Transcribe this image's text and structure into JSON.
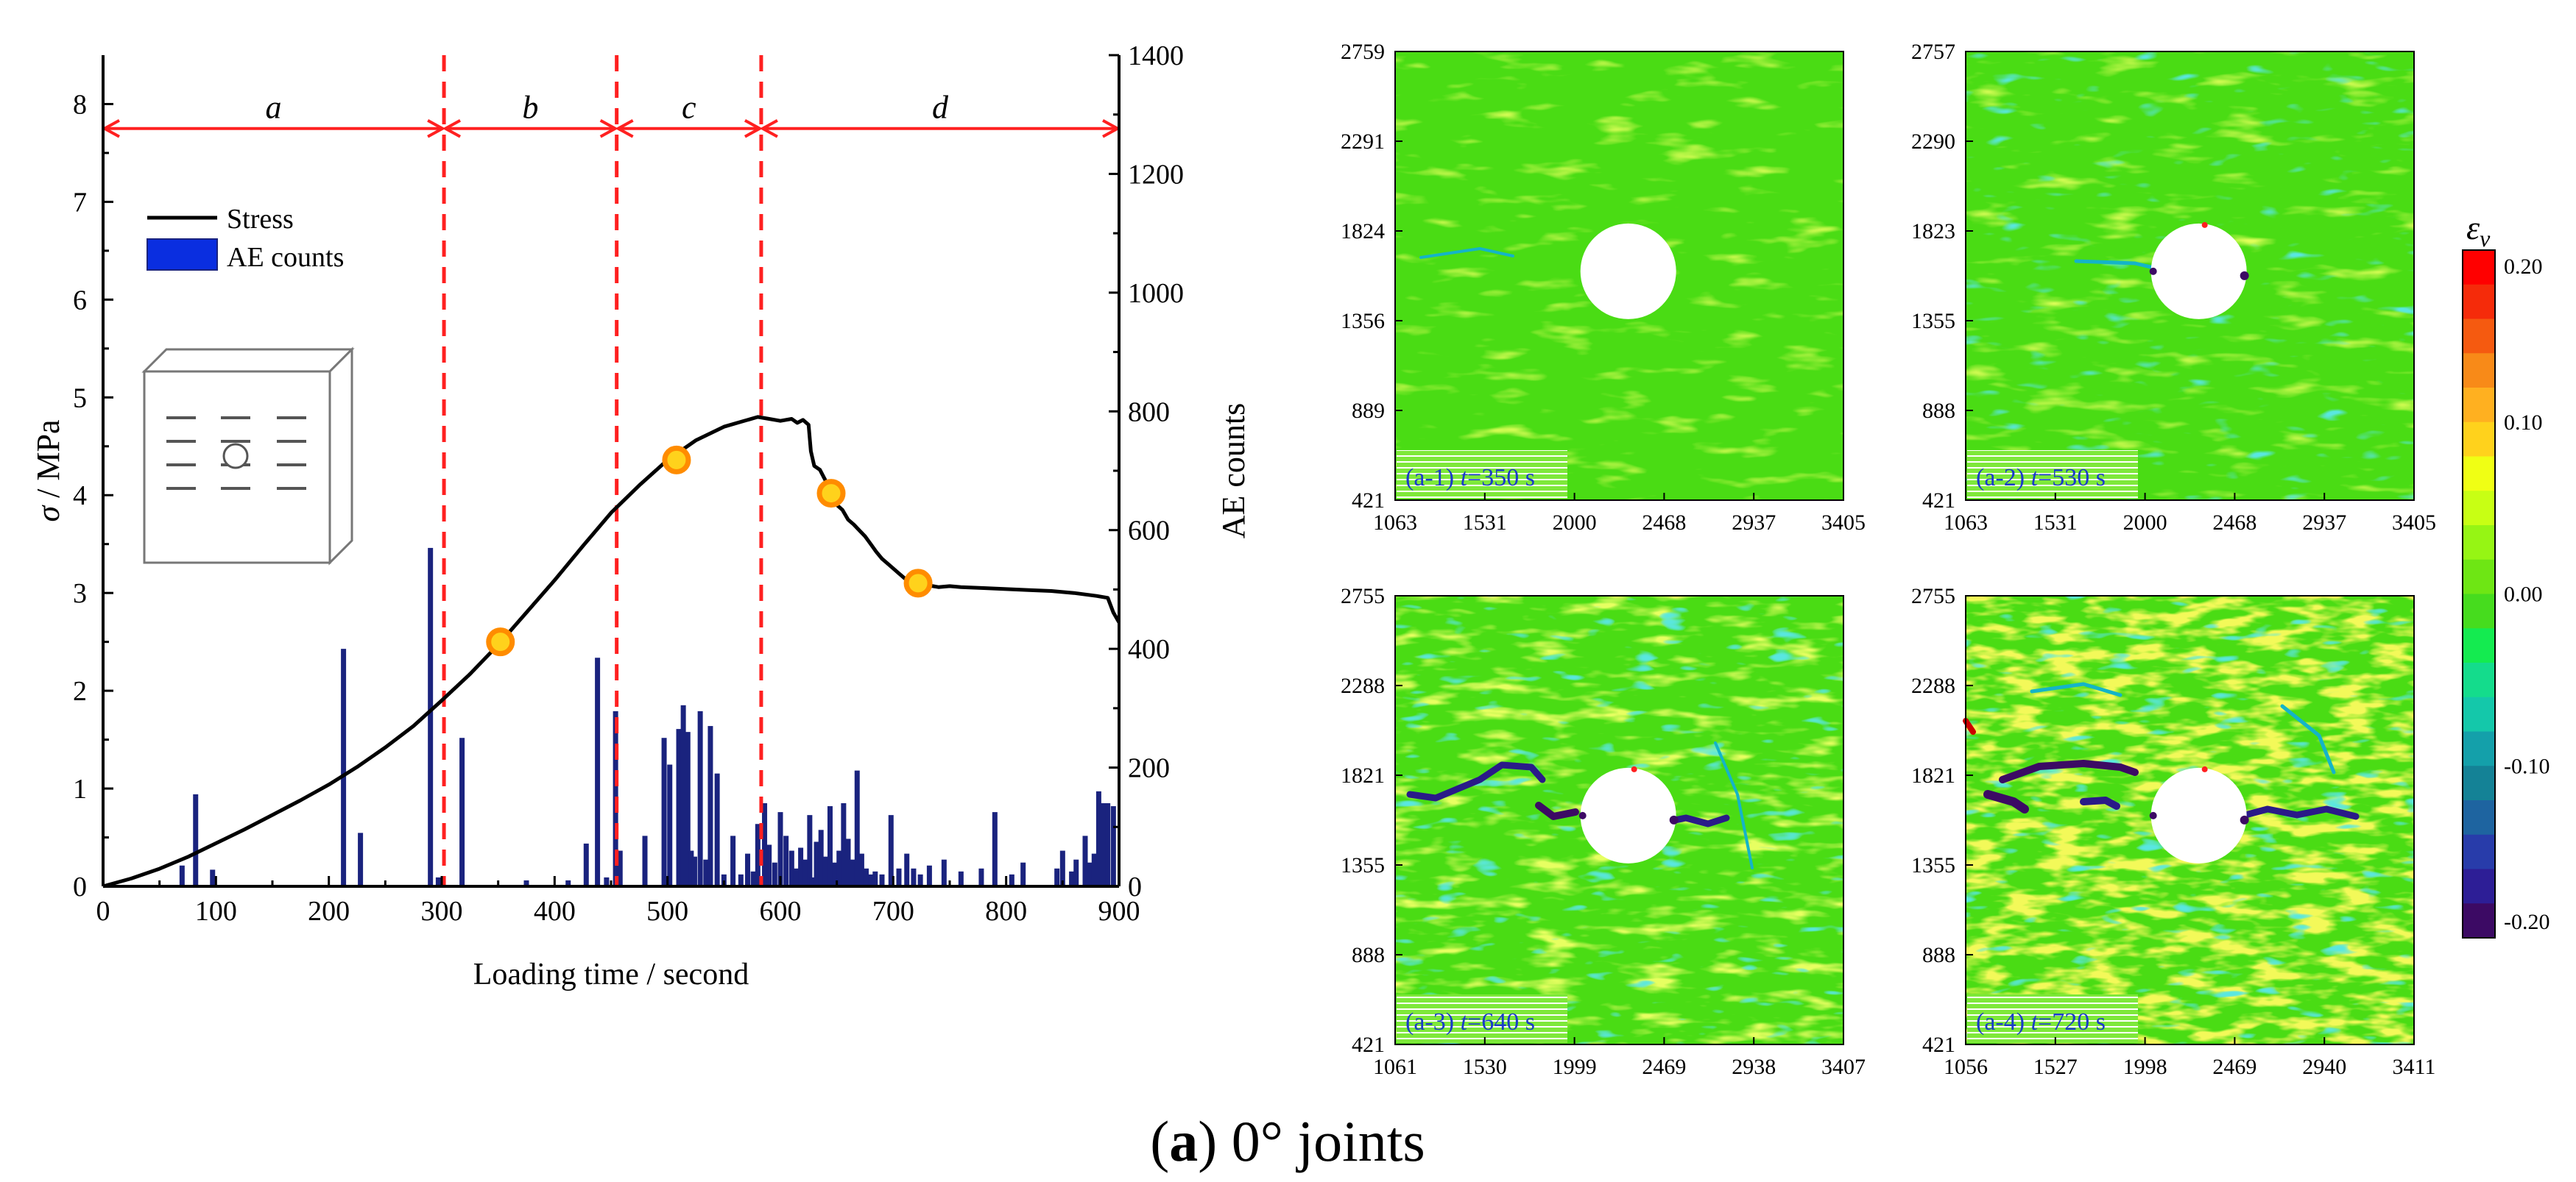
{
  "caption": {
    "label": "a",
    "text": " 0° joints"
  },
  "chart_data": [
    {
      "type": "line+bar",
      "xlabel": "Loading time / second",
      "ylabel_symbol": "σ",
      "ylabel_rest": " / MPa",
      "y2label": "AE counts",
      "xlim": [
        0,
        900
      ],
      "ylim": [
        0,
        8.5
      ],
      "y2lim": [
        0,
        1400
      ],
      "x_ticks": [
        0,
        100,
        200,
        300,
        400,
        500,
        600,
        700,
        800,
        900
      ],
      "y_ticks": [
        0,
        1,
        2,
        3,
        4,
        5,
        6,
        7,
        8
      ],
      "y2_ticks": [
        0,
        200,
        400,
        600,
        800,
        1000,
        1200,
        1400
      ],
      "legend": [
        {
          "label": "Stress",
          "kind": "line",
          "color": "#000000"
        },
        {
          "label": "AE counts",
          "kind": "bar",
          "color": "#1a237e"
        }
      ],
      "stages": [
        {
          "label": "a",
          "from": 0,
          "to": 302
        },
        {
          "label": "b",
          "from": 302,
          "to": 455
        },
        {
          "label": "c",
          "from": 455,
          "to": 583
        },
        {
          "label": "d",
          "from": 583,
          "to": 900
        }
      ],
      "stage_arrow_level": 7.75,
      "boundaries": [
        302,
        455,
        583
      ],
      "stress": {
        "name": "Stress",
        "x": [
          0,
          25,
          50,
          75,
          100,
          125,
          150,
          175,
          200,
          225,
          250,
          275,
          300,
          325,
          350,
          375,
          400,
          425,
          450,
          475,
          500,
          525,
          550,
          565,
          580,
          590,
          600,
          610,
          615,
          620,
          625,
          627,
          630,
          635,
          640,
          645,
          650,
          655,
          660,
          665,
          670,
          675,
          680,
          685,
          690,
          695,
          700,
          705,
          710,
          715,
          720,
          730,
          740,
          750,
          760,
          780,
          800,
          820,
          840,
          860,
          880,
          890,
          895,
          900
        ],
        "y": [
          0,
          0.08,
          0.18,
          0.3,
          0.44,
          0.58,
          0.73,
          0.88,
          1.04,
          1.22,
          1.42,
          1.64,
          1.9,
          2.17,
          2.47,
          2.8,
          3.13,
          3.48,
          3.82,
          4.1,
          4.36,
          4.56,
          4.7,
          4.75,
          4.8,
          4.78,
          4.76,
          4.78,
          4.74,
          4.77,
          4.72,
          4.45,
          4.3,
          4.26,
          4.15,
          4.02,
          3.9,
          3.85,
          3.75,
          3.7,
          3.64,
          3.58,
          3.5,
          3.42,
          3.35,
          3.3,
          3.25,
          3.2,
          3.15,
          3.12,
          3.1,
          3.08,
          3.06,
          3.07,
          3.06,
          3.05,
          3.04,
          3.03,
          3.02,
          3.0,
          2.97,
          2.95,
          2.8,
          2.7
        ]
      },
      "markers": [
        {
          "x": 352,
          "y": 2.5
        },
        {
          "x": 508,
          "y": 4.36
        },
        {
          "x": 645,
          "y": 4.02
        },
        {
          "x": 722,
          "y": 3.1
        }
      ],
      "ae_counts": {
        "name": "AE counts",
        "x": [
          70,
          82,
          97,
          213,
          228,
          290,
          297,
          318,
          375,
          412,
          428,
          438,
          446,
          454,
          458,
          480,
          497,
          502,
          510,
          514,
          518,
          521,
          524,
          529,
          534,
          538,
          544,
          550,
          558,
          565,
          571,
          576,
          580,
          586,
          590,
          595,
          600,
          605,
          610,
          614,
          618,
          622,
          626,
          628,
          632,
          636,
          640,
          644,
          648,
          652,
          656,
          660,
          664,
          668,
          672,
          676,
          680,
          684,
          690,
          698,
          705,
          712,
          718,
          724,
          732,
          745,
          760,
          778,
          790,
          805,
          815,
          845,
          850,
          858,
          862,
          870,
          874,
          878,
          882,
          886,
          890,
          895
        ],
        "y": [
          35,
          155,
          28,
          400,
          90,
          570,
          15,
          250,
          10,
          10,
          72,
          385,
          15,
          295,
          60,
          85,
          250,
          205,
          265,
          305,
          260,
          60,
          50,
          295,
          45,
          270,
          190,
          20,
          85,
          20,
          55,
          25,
          105,
          140,
          70,
          40,
          125,
          85,
          60,
          30,
          65,
          45,
          120,
          15,
          75,
          95,
          50,
          135,
          40,
          60,
          140,
          80,
          45,
          195,
          55,
          30,
          20,
          25,
          20,
          120,
          30,
          55,
          30,
          20,
          35,
          45,
          25,
          30,
          125,
          20,
          40,
          30,
          60,
          25,
          45,
          85,
          40,
          55,
          160,
          140,
          140,
          135
        ]
      }
    },
    {
      "type": "heatmap",
      "panel": "a-1",
      "label_prefix": "(a-1) ",
      "t_symbol": "t",
      "t_value": "=350 s",
      "x_ticks": [
        "1063",
        "1531",
        "2000",
        "2468",
        "2937",
        "3405"
      ],
      "y_ticks": [
        "2759",
        "2291",
        "1824",
        "1356",
        "889",
        "421"
      ],
      "damage": "low"
    },
    {
      "type": "heatmap",
      "panel": "a-2",
      "label_prefix": "(a-2) ",
      "t_symbol": "t",
      "t_value": "=530 s",
      "x_ticks": [
        "1063",
        "1531",
        "2000",
        "2468",
        "2937",
        "3405"
      ],
      "y_ticks": [
        "2757",
        "2290",
        "1823",
        "1355",
        "888",
        "421"
      ],
      "damage": "medium"
    },
    {
      "type": "heatmap",
      "panel": "a-3",
      "label_prefix": "(a-3) ",
      "t_symbol": "t",
      "t_value": "=640 s",
      "x_ticks": [
        "1061",
        "1530",
        "1999",
        "2469",
        "2938",
        "3407"
      ],
      "y_ticks": [
        "2755",
        "2288",
        "1821",
        "1355",
        "888",
        "421"
      ],
      "damage": "high"
    },
    {
      "type": "heatmap",
      "panel": "a-4",
      "label_prefix": "(a-4) ",
      "t_symbol": "t",
      "t_value": "=720 s",
      "x_ticks": [
        "1056",
        "1527",
        "1998",
        "2469",
        "2940",
        "3411"
      ],
      "y_ticks": [
        "2755",
        "2288",
        "1821",
        "1355",
        "888",
        "421"
      ],
      "damage": "very-high"
    }
  ],
  "colorbar": {
    "symbol": "ε",
    "subscript": "v",
    "range": [
      -0.2,
      0.2
    ],
    "tick_labels": [
      "0.20",
      "0.10",
      "0.00",
      "-0.10",
      "-0.20"
    ],
    "tick_values": [
      0.2,
      0.1,
      0.0,
      -0.1,
      -0.2
    ],
    "colors": [
      "#ff0000",
      "#f52b0a",
      "#f55a10",
      "#f88a18",
      "#ffb020",
      "#ffd21c",
      "#f0ff14",
      "#c8ff14",
      "#96f514",
      "#6ee614",
      "#46dc1e",
      "#14eb50",
      "#14dc8c",
      "#14c8aa",
      "#14a0aa",
      "#148296",
      "#1e64a0",
      "#283caa",
      "#2d1e96",
      "#3c0a64"
    ]
  }
}
